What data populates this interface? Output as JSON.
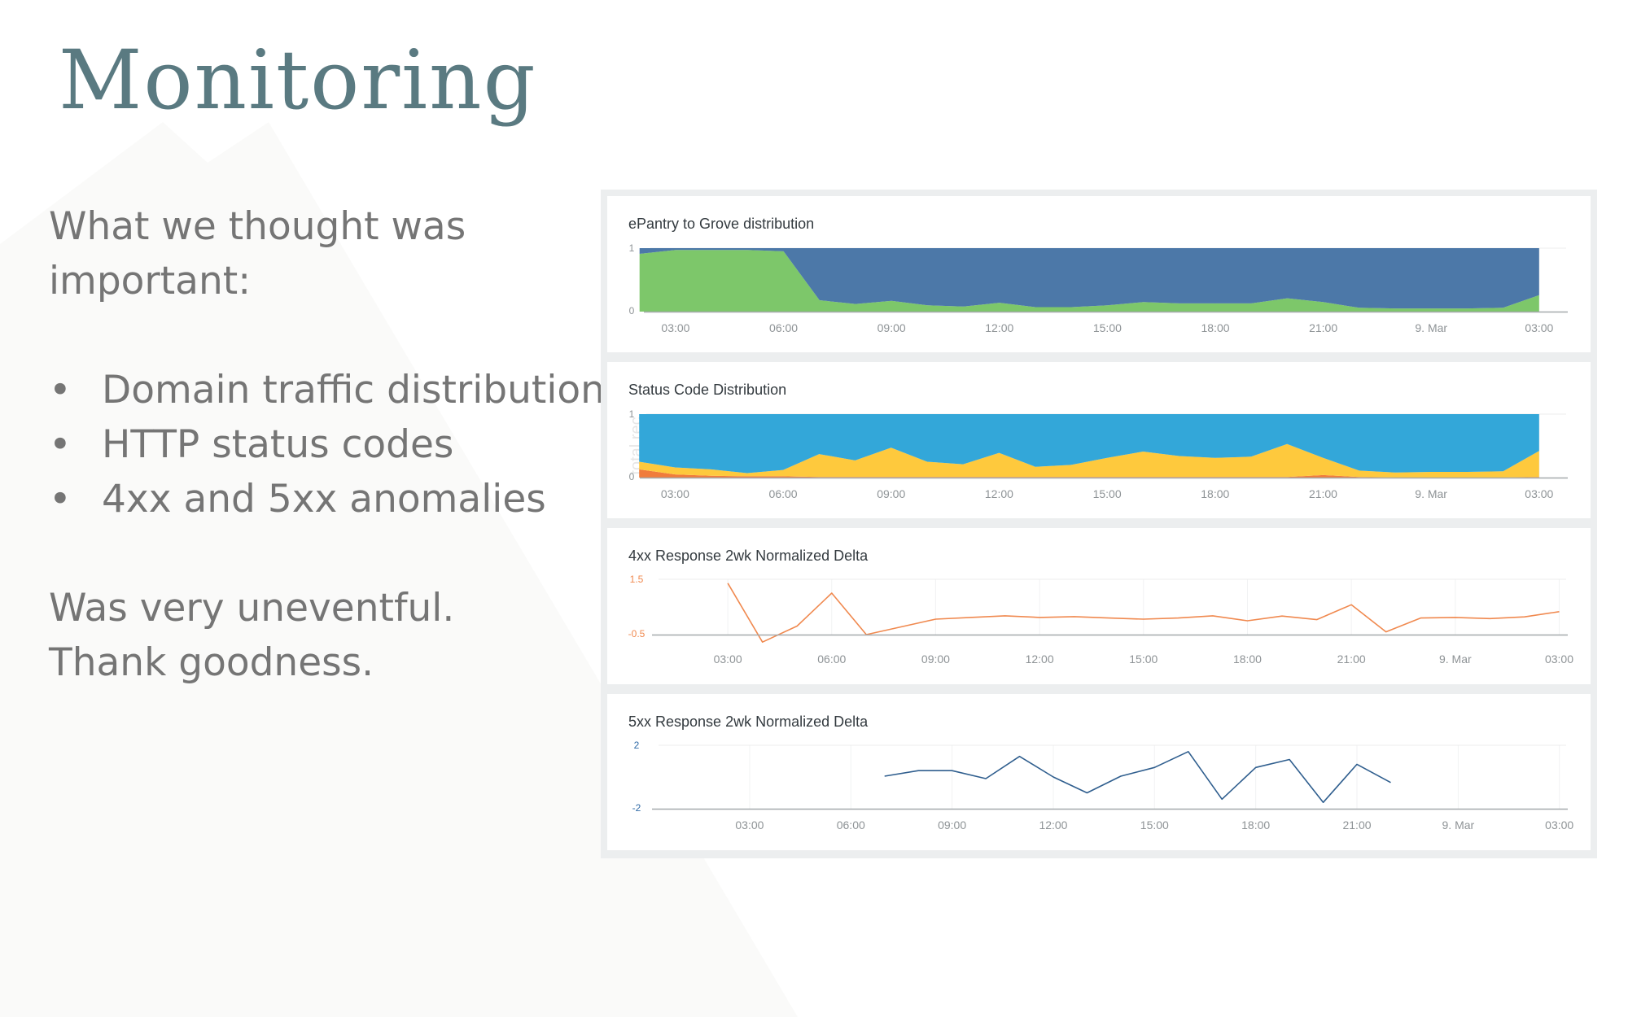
{
  "slide": {
    "title": "Monitoring",
    "intro": [
      "What we thought was",
      "important:"
    ],
    "bullets": [
      "Domain traffic distribution",
      "HTTP status codes",
      "4xx and 5xx anomalies"
    ],
    "bullet_glyph": "•",
    "outro": [
      "Was very uneventful.",
      "Thank goodness."
    ]
  },
  "colors": {
    "title": "#5a7a81",
    "text": "#757575",
    "green": "#7dc76a",
    "dark_blue": "#4c78a8",
    "light_blue": "#33a7d9",
    "yellow": "#fec93d",
    "orange_red": "#f07c3c",
    "orange_line": "#f0894f",
    "navy_line": "#2f5e8e"
  },
  "chart_data": [
    {
      "type": "area",
      "title": "ePantry to Grove distribution",
      "stacked": true,
      "ylim": [
        0,
        1
      ],
      "y_ticks": [
        "1",
        "0"
      ],
      "xlim": [
        2.3,
        27.75
      ],
      "x_ticks": [
        "03:00",
        "06:00",
        "09:00",
        "12:00",
        "15:00",
        "18:00",
        "21:00",
        "9. Mar",
        "03:00"
      ],
      "x": [
        2,
        3,
        4,
        5,
        6,
        7,
        8,
        9,
        10,
        11,
        12,
        13,
        14,
        15,
        16,
        17,
        18,
        19,
        20,
        21,
        22,
        23,
        24,
        25,
        26,
        27
      ],
      "series": [
        {
          "values": [
            0.91,
            0.97,
            0.97,
            0.97,
            0.95,
            0.18,
            0.12,
            0.17,
            0.1,
            0.08,
            0.14,
            0.07,
            0.07,
            0.1,
            0.15,
            0.13,
            0.13,
            0.13,
            0.21,
            0.15,
            0.06,
            0.05,
            0.05,
            0.05,
            0.06,
            0.26
          ]
        },
        {
          "values": [
            0.09,
            0.03,
            0.03,
            0.03,
            0.05,
            0.82,
            0.88,
            0.83,
            0.9,
            0.92,
            0.86,
            0.93,
            0.93,
            0.9,
            0.85,
            0.87,
            0.87,
            0.87,
            0.79,
            0.85,
            0.94,
            0.95,
            0.95,
            0.95,
            0.94,
            0.74
          ]
        }
      ],
      "legend": "none",
      "grid": true
    },
    {
      "type": "area",
      "title": "Status Code Distribution",
      "ylabel": "total rec",
      "stacked": true,
      "ylim": [
        0,
        1
      ],
      "y_ticks": [
        "1",
        "0"
      ],
      "xlim": [
        2.2,
        27.75
      ],
      "x_ticks": [
        "03:00",
        "06:00",
        "09:00",
        "12:00",
        "15:00",
        "18:00",
        "21:00",
        "9. Mar",
        "03:00"
      ],
      "x": [
        2,
        3,
        4,
        5,
        6,
        7,
        8,
        9,
        10,
        11,
        12,
        13,
        14,
        15,
        16,
        17,
        18,
        19,
        20,
        21,
        22,
        23,
        24,
        25,
        26,
        27
      ],
      "series": [
        {
          "values": [
            0.13,
            0.05,
            0.03,
            0.02,
            0.02,
            0.01,
            0.01,
            0.01,
            0.01,
            0.01,
            0.01,
            0.01,
            0.01,
            0.01,
            0.01,
            0.01,
            0.01,
            0.01,
            0.01,
            0.04,
            0.01,
            0.0,
            0.0,
            0.0,
            0.0,
            0.01
          ]
        },
        {
          "values": [
            0.12,
            0.11,
            0.1,
            0.05,
            0.1,
            0.36,
            0.26,
            0.46,
            0.24,
            0.2,
            0.38,
            0.16,
            0.19,
            0.3,
            0.4,
            0.33,
            0.3,
            0.32,
            0.52,
            0.27,
            0.1,
            0.08,
            0.09,
            0.09,
            0.1,
            0.41
          ]
        },
        {
          "values": [
            0.75,
            0.84,
            0.87,
            0.93,
            0.88,
            0.63,
            0.73,
            0.53,
            0.75,
            0.79,
            0.61,
            0.83,
            0.8,
            0.69,
            0.59,
            0.66,
            0.69,
            0.67,
            0.47,
            0.69,
            0.89,
            0.92,
            0.91,
            0.91,
            0.9,
            0.58
          ]
        }
      ],
      "legend": "none",
      "grid": true
    },
    {
      "type": "line",
      "title": "4xx Response 2wk Normalized Delta",
      "ylim": [
        -0.5,
        1.5
      ],
      "y_ticks": [
        "1.5",
        "-0.5"
      ],
      "xlim": [
        1.0,
        27.2
      ],
      "x_ticks": [
        "03:00",
        "06:00",
        "09:00",
        "12:00",
        "15:00",
        "18:00",
        "21:00",
        "9. Mar",
        "03:00"
      ],
      "x": [
        3,
        4,
        5,
        6,
        7,
        8,
        9,
        10,
        11,
        12,
        13,
        14,
        15,
        16,
        17,
        18,
        19,
        20,
        21,
        22,
        23,
        24,
        25,
        26,
        27
      ],
      "series": [
        {
          "values": [
            1.36,
            -0.77,
            -0.19,
            1.0,
            -0.5,
            -0.22,
            0.06,
            0.12,
            0.18,
            0.12,
            0.15,
            0.1,
            0.06,
            0.1,
            0.18,
            0.0,
            0.17,
            0.04,
            0.58,
            -0.4,
            0.1,
            0.12,
            0.08,
            0.14,
            0.33
          ]
        }
      ],
      "legend": "none",
      "grid": true
    },
    {
      "type": "line",
      "title": "5xx Response 2wk Normalized Delta",
      "ylim": [
        -2,
        2
      ],
      "y_ticks": [
        "2",
        "-2"
      ],
      "xlim": [
        0.3,
        27.2
      ],
      "x_ticks": [
        "03:00",
        "06:00",
        "09:00",
        "12:00",
        "15:00",
        "18:00",
        "21:00",
        "9. Mar",
        "03:00"
      ],
      "x": [
        7,
        8,
        9,
        10,
        11,
        12,
        13,
        14,
        15,
        16,
        17,
        18,
        19,
        20,
        21,
        22
      ],
      "series": [
        {
          "values": [
            0.05,
            0.4,
            0.4,
            -0.1,
            1.3,
            0.0,
            -1.0,
            0.05,
            0.6,
            1.6,
            -1.4,
            0.6,
            1.1,
            -1.6,
            0.8,
            -0.35
          ]
        }
      ],
      "legend": "none",
      "grid": true
    }
  ]
}
